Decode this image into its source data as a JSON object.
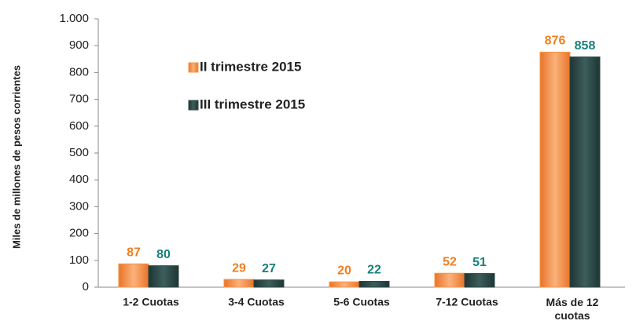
{
  "chart_data": {
    "type": "bar",
    "y_label": "Miles de millones de pesos corrientes",
    "categories": [
      "1-2 Cuotas",
      "3-4 Cuotas",
      "5-6 Cuotas",
      "7-12 Cuotas",
      "Más de 12 cuotas"
    ],
    "series": [
      {
        "name": "II trimestre 2015",
        "color": "#f79646",
        "label_color": "#f07f20",
        "values": [
          87,
          29,
          20,
          52,
          876
        ]
      },
      {
        "name": "III trimestre 2015",
        "color": "#2c4a48",
        "label_color": "#17807c",
        "values": [
          80,
          27,
          22,
          51,
          858
        ]
      }
    ],
    "ylim": [
      0,
      1000
    ],
    "yticks": [
      0,
      100,
      200,
      300,
      400,
      500,
      600,
      700,
      800,
      900,
      {
        "value": 1000,
        "label": "1.000"
      }
    ],
    "grid": false
  }
}
